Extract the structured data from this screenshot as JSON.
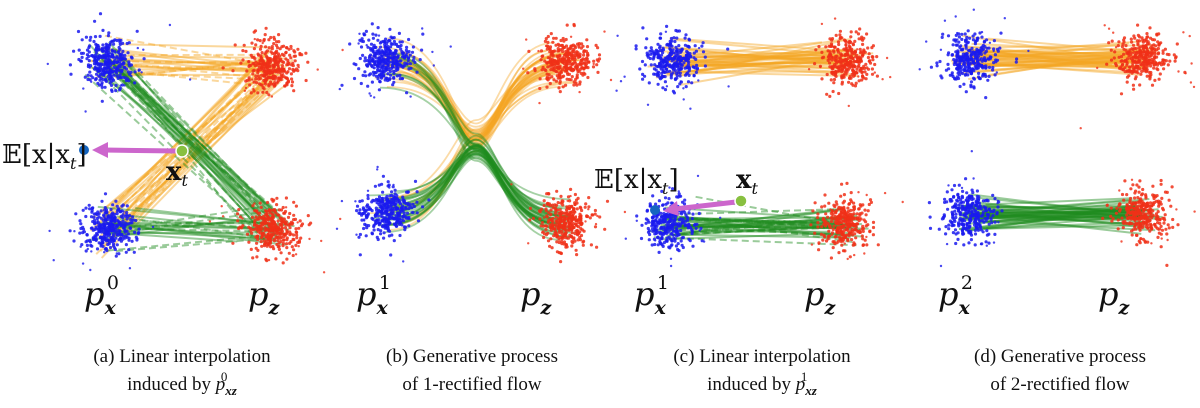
{
  "colors": {
    "source": "#1a1aee",
    "target": "#f03018",
    "path_top": "#f5a623",
    "path_bottom": "#1e8c1e",
    "arrow": "#cc66cc",
    "xt_dot": "#88c040",
    "mean_dot": "#1565c0"
  },
  "panels": [
    {
      "id": "a",
      "source_label": {
        "base": "p",
        "sub": "x",
        "sup": "0"
      },
      "target_label": {
        "base": "p",
        "sub": "z"
      },
      "caption_line1": "(a) Linear interpolation",
      "caption_line2_text": "induced by ",
      "caption_line2_math": {
        "base": "p",
        "sub": "xz",
        "sup": "0"
      },
      "annotation": {
        "mean_label": "𝔼[x|x",
        "mean_sub": "t",
        "mean_close": "]",
        "xt_label": "x",
        "xt_sub": "t"
      }
    },
    {
      "id": "b",
      "source_label": {
        "base": "p",
        "sub": "x",
        "sup": "1"
      },
      "target_label": {
        "base": "p",
        "sub": "z"
      },
      "caption_line1": "(b) Generative process",
      "caption_line2_text": "of 1-rectified flow"
    },
    {
      "id": "c",
      "source_label": {
        "base": "p",
        "sub": "x",
        "sup": "1"
      },
      "target_label": {
        "base": "p",
        "sub": "z"
      },
      "caption_line1": "(c) Linear interpolation",
      "caption_line2_text": "induced by ",
      "caption_line2_math": {
        "base": "p",
        "sub": "xz",
        "sup": "1"
      },
      "annotation": {
        "mean_label": "𝔼[x|x",
        "mean_sub": "t",
        "mean_close": "]",
        "xt_label": "x",
        "xt_sub": "t"
      }
    },
    {
      "id": "d",
      "source_label": {
        "base": "p",
        "sub": "x",
        "sup": "2"
      },
      "target_label": {
        "base": "p",
        "sub": "z"
      },
      "caption_line1": "(d) Generative process",
      "caption_line2_text": "of 2-rectified flow"
    }
  ]
}
